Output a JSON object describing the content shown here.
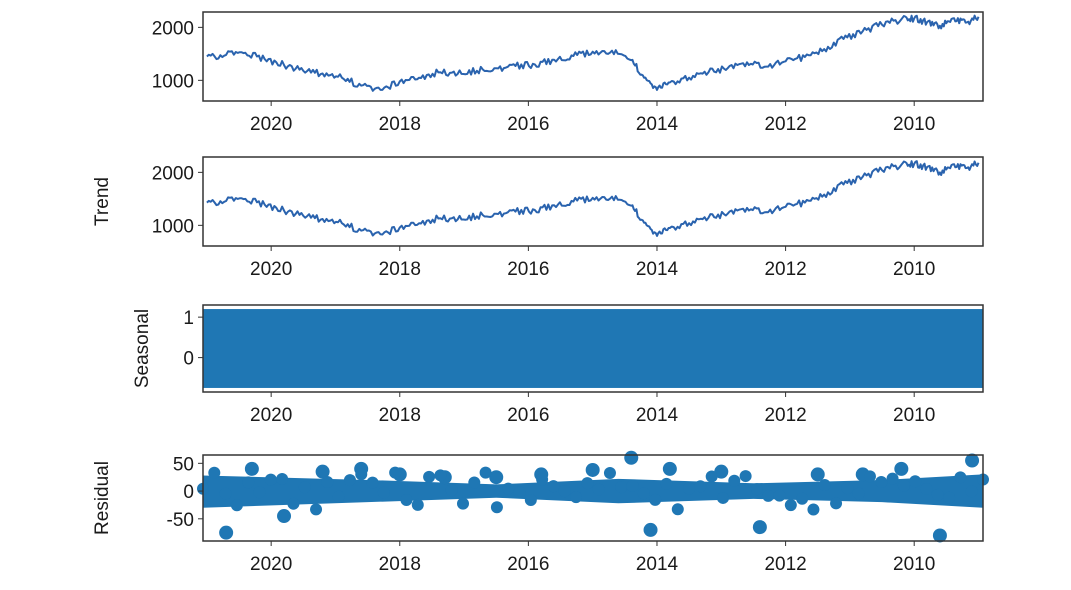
{
  "chart_data": [
    {
      "type": "line",
      "ylabel": "",
      "xlim": [
        2021.06,
        2008.93
      ],
      "ylim": [
        610,
        2290
      ],
      "xticks": [
        2020,
        2018,
        2016,
        2014,
        2012,
        2010
      ],
      "yticks": [
        1000,
        2000
      ],
      "x": [
        2021.0,
        2020.7,
        2020.4,
        2020.1,
        2019.8,
        2019.5,
        2019.2,
        2018.9,
        2018.6,
        2018.3,
        2018.0,
        2017.7,
        2017.4,
        2017.1,
        2016.8,
        2016.5,
        2016.2,
        2015.9,
        2015.6,
        2015.3,
        2015.0,
        2014.7,
        2014.4,
        2014.2,
        2014.0,
        2013.8,
        2013.5,
        2013.2,
        2012.9,
        2012.6,
        2012.3,
        2012.0,
        2011.7,
        2011.4,
        2011.1,
        2010.8,
        2010.5,
        2010.2,
        2010.0,
        2009.8,
        2009.6,
        2009.4,
        2009.2,
        2009.0
      ],
      "series": [
        {
          "values": [
            1450,
            1480,
            1520,
            1400,
            1290,
            1180,
            1130,
            1050,
            900,
            820,
            980,
            1050,
            1150,
            1120,
            1180,
            1230,
            1270,
            1300,
            1390,
            1460,
            1540,
            1560,
            1380,
            1050,
            820,
            960,
            1050,
            1150,
            1230,
            1340,
            1260,
            1360,
            1440,
            1590,
            1780,
            1930,
            2050,
            2150,
            2170,
            2100,
            2030,
            2170,
            2090,
            2200
          ]
        }
      ]
    },
    {
      "type": "line",
      "ylabel": "Trend",
      "xlim": [
        2021.06,
        2008.93
      ],
      "ylim": [
        610,
        2290
      ],
      "xticks": [
        2020,
        2018,
        2016,
        2014,
        2012,
        2010
      ],
      "yticks": [
        1000,
        2000
      ],
      "x": [
        2021.0,
        2020.7,
        2020.4,
        2020.1,
        2019.8,
        2019.5,
        2019.2,
        2018.9,
        2018.6,
        2018.3,
        2018.0,
        2017.7,
        2017.4,
        2017.1,
        2016.8,
        2016.5,
        2016.2,
        2015.9,
        2015.6,
        2015.3,
        2015.0,
        2014.7,
        2014.4,
        2014.2,
        2014.0,
        2013.8,
        2013.5,
        2013.2,
        2012.9,
        2012.6,
        2012.3,
        2012.0,
        2011.7,
        2011.4,
        2011.1,
        2010.8,
        2010.5,
        2010.2,
        2010.0,
        2009.8,
        2009.6,
        2009.4,
        2009.2,
        2009.0
      ],
      "series": [
        {
          "values": [
            1430,
            1460,
            1500,
            1390,
            1280,
            1180,
            1120,
            1040,
            900,
            830,
            960,
            1040,
            1130,
            1110,
            1170,
            1220,
            1260,
            1290,
            1380,
            1450,
            1520,
            1540,
            1370,
            1050,
            800,
            950,
            1040,
            1140,
            1220,
            1330,
            1250,
            1350,
            1430,
            1580,
            1770,
            1920,
            2040,
            2140,
            2160,
            2100,
            2000,
            2150,
            2080,
            2180
          ]
        }
      ]
    },
    {
      "type": "area",
      "ylabel": "Seasonal",
      "xlim": [
        2021.06,
        2008.93
      ],
      "ylim": [
        -0.85,
        1.3
      ],
      "xticks": [
        2020,
        2018,
        2016,
        2014,
        2012,
        2010
      ],
      "yticks": [
        0,
        1
      ],
      "x": [
        2021.06,
        2008.93
      ],
      "series": [
        {
          "min": -0.75,
          "max": 1.2
        }
      ]
    },
    {
      "type": "scatter",
      "ylabel": "Residual",
      "xlim": [
        2021.06,
        2008.93
      ],
      "ylim": [
        -90,
        65
      ],
      "xticks": [
        2020,
        2018,
        2016,
        2014,
        2012,
        2010
      ],
      "yticks": [
        -50,
        0,
        50
      ],
      "x": [
        2020.7,
        2020.3,
        2019.8,
        2019.2,
        2018.6,
        2018.0,
        2017.3,
        2016.5,
        2015.8,
        2015.0,
        2014.4,
        2014.1,
        2013.8,
        2013.0,
        2012.4,
        2011.5,
        2010.8,
        2010.2,
        2009.6,
        2009.1
      ],
      "series": [
        {
          "values": [
            -75,
            40,
            -45,
            35,
            40,
            30,
            25,
            25,
            30,
            38,
            60,
            -70,
            40,
            35,
            -65,
            30,
            30,
            40,
            -80,
            55
          ]
        }
      ]
    }
  ],
  "colors": {
    "series": "#2a63ae",
    "fill": "#1f77b4",
    "frame": "#333333",
    "text": "#1a1a1a"
  }
}
